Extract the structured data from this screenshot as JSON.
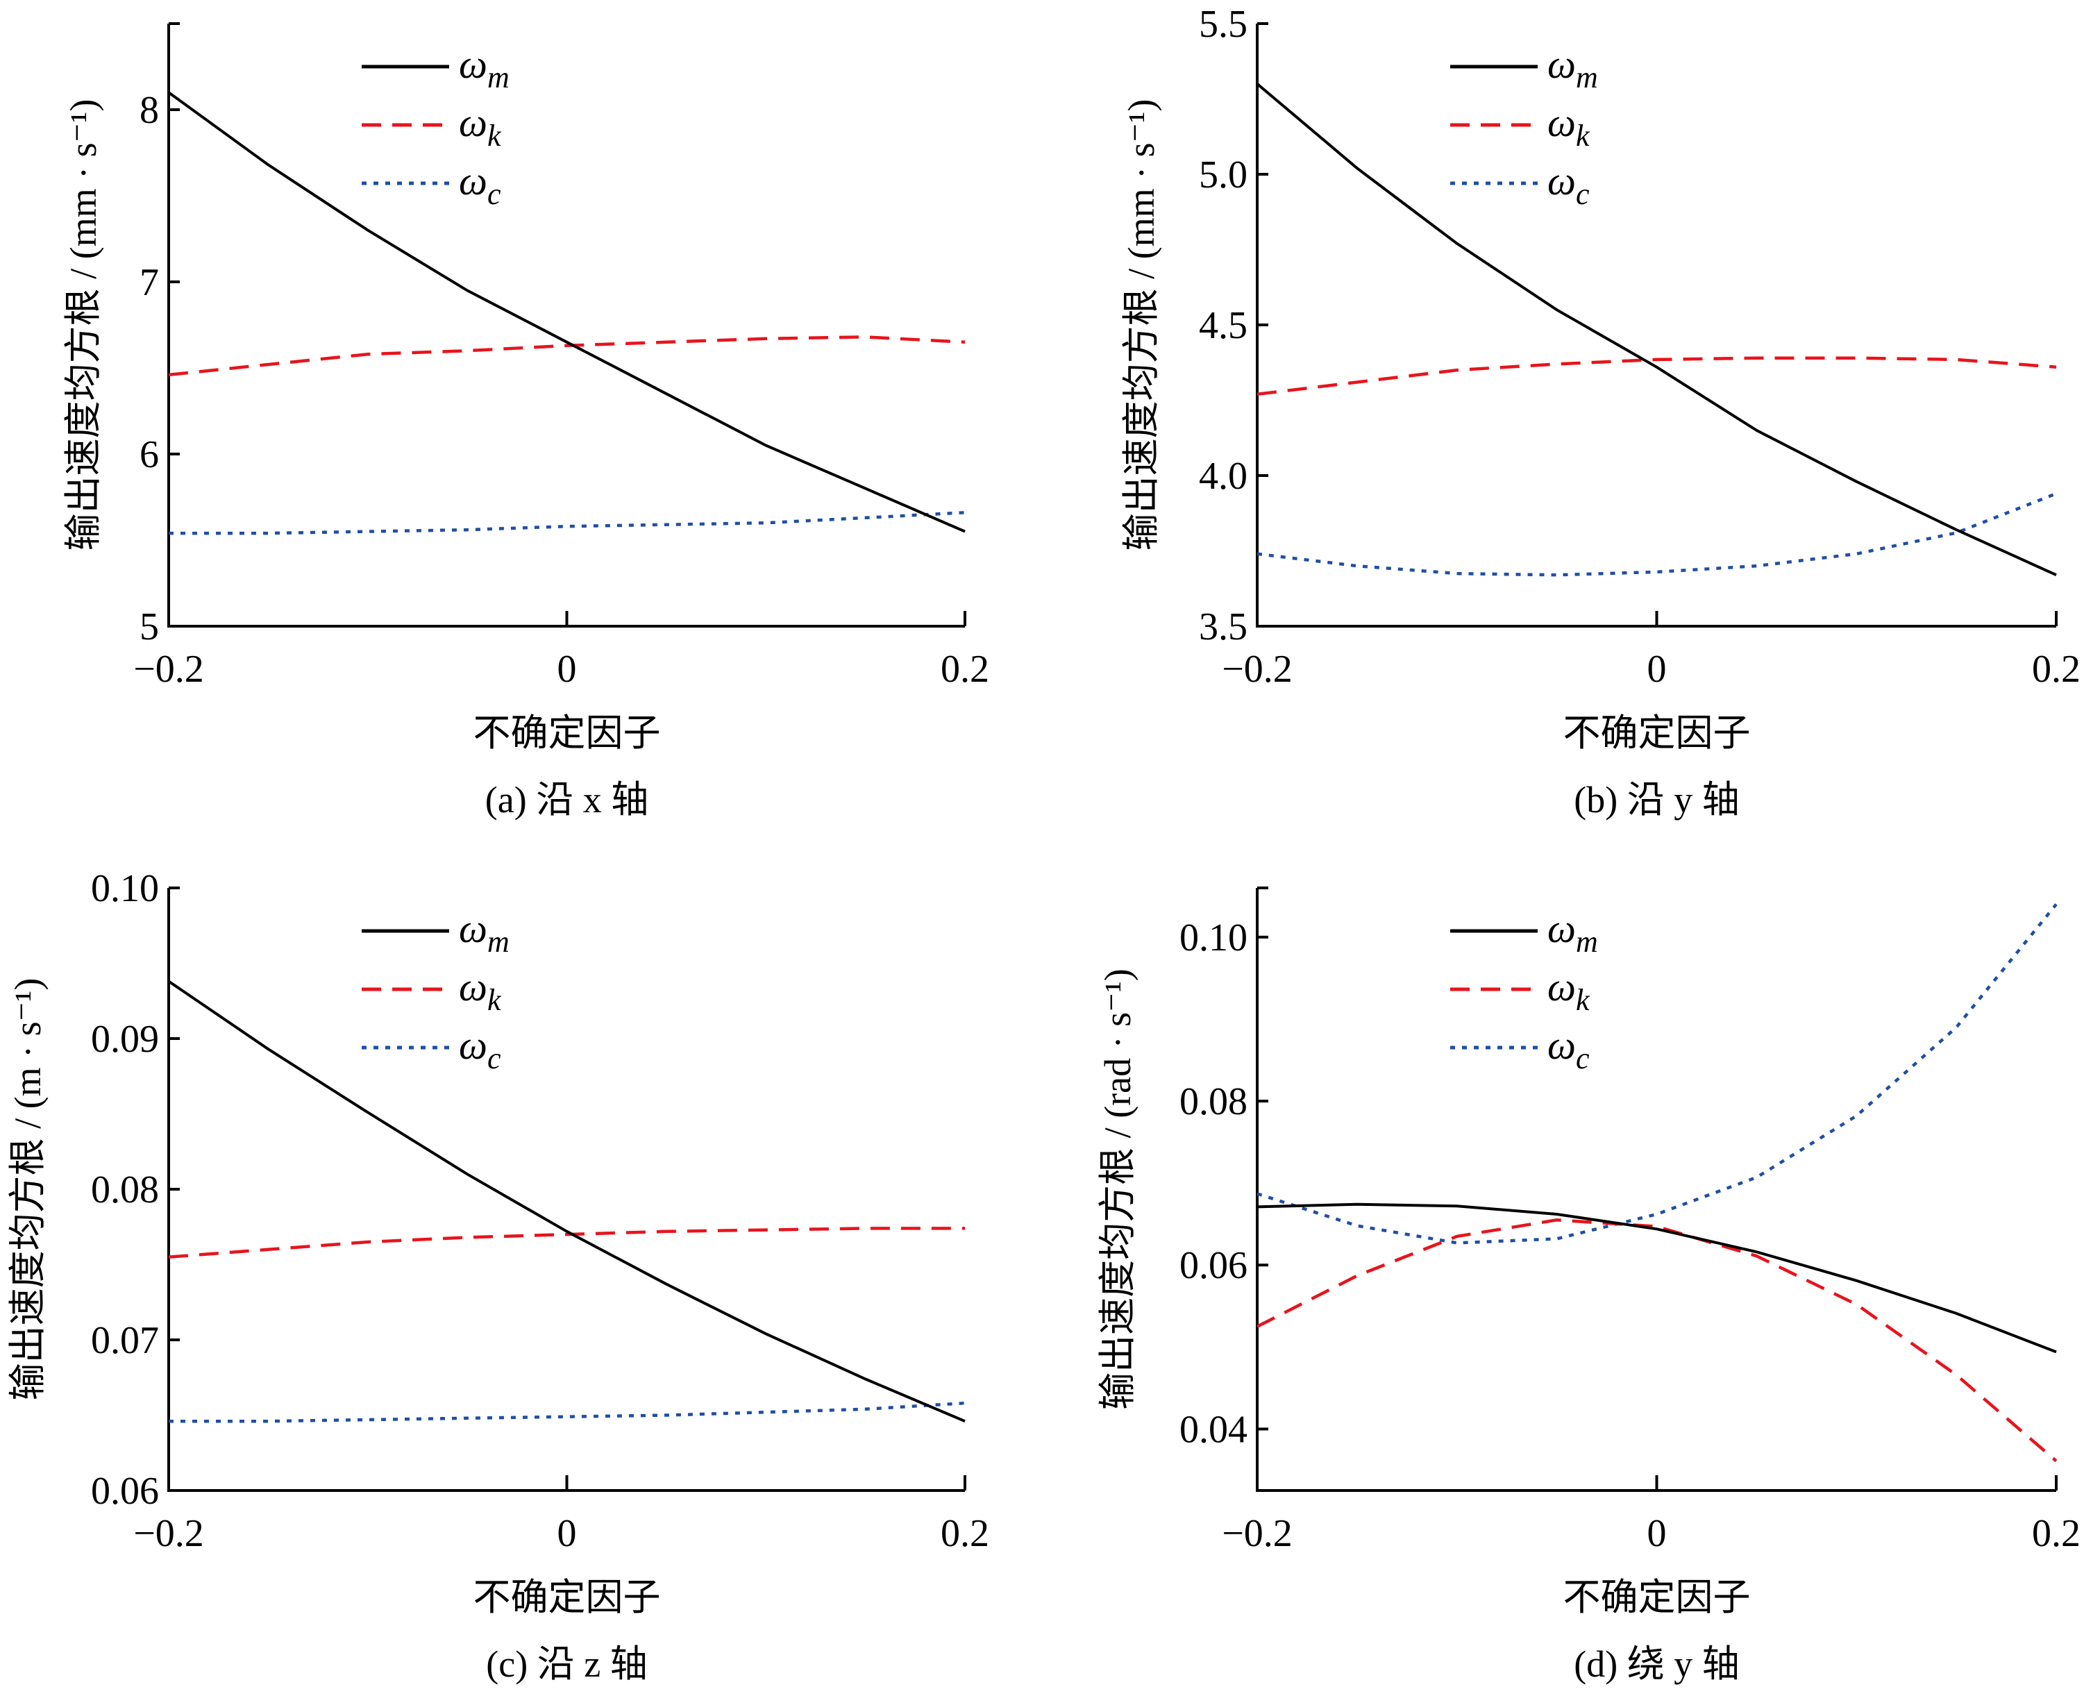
{
  "chart_data": [
    {
      "type": "line",
      "caption": "(a) 沿 x 轴",
      "xlabel": "不确定因子",
      "ylabel": "输出速度均方根 / (mm · s⁻¹)",
      "x": [
        -0.2,
        -0.15,
        -0.1,
        -0.05,
        0,
        0.05,
        0.1,
        0.15,
        0.2
      ],
      "xlim": [
        -0.2,
        0.2
      ],
      "ylim": [
        5,
        8.5
      ],
      "xticks": [
        -0.2,
        0,
        0.2
      ],
      "xtick_labels": [
        "−0.2",
        "0",
        "0.2"
      ],
      "yticks": [
        5,
        6,
        7,
        8
      ],
      "ytick_labels": [
        "5",
        "6",
        "7",
        "8"
      ],
      "series": [
        {
          "name": "ωm",
          "values": [
            8.1,
            7.68,
            7.3,
            6.95,
            6.65,
            6.35,
            6.05,
            5.8,
            5.55
          ]
        },
        {
          "name": "ωk",
          "values": [
            6.46,
            6.52,
            6.58,
            6.6,
            6.63,
            6.65,
            6.67,
            6.68,
            6.65
          ]
        },
        {
          "name": "ωc",
          "values": [
            5.54,
            5.54,
            5.55,
            5.56,
            5.58,
            5.59,
            5.6,
            5.63,
            5.66
          ]
        }
      ]
    },
    {
      "type": "line",
      "caption": "(b) 沿 y 轴",
      "xlabel": "不确定因子",
      "ylabel": "输出速度均方根 / (mm · s⁻¹)",
      "x": [
        -0.2,
        -0.15,
        -0.1,
        -0.05,
        0,
        0.05,
        0.1,
        0.15,
        0.2
      ],
      "xlim": [
        -0.2,
        0.2
      ],
      "ylim": [
        3.5,
        5.5
      ],
      "xticks": [
        -0.2,
        0,
        0.2
      ],
      "xtick_labels": [
        "−0.2",
        "0",
        "0.2"
      ],
      "yticks": [
        3.5,
        4.0,
        4.5,
        5.0,
        5.5
      ],
      "ytick_labels": [
        "3.5",
        "4.0",
        "4.5",
        "5.0",
        "5.5"
      ],
      "series": [
        {
          "name": "ωm",
          "values": [
            5.3,
            5.02,
            4.77,
            4.55,
            4.36,
            4.15,
            3.98,
            3.82,
            3.67
          ]
        },
        {
          "name": "ωk",
          "values": [
            4.27,
            4.31,
            4.35,
            4.37,
            4.385,
            4.39,
            4.39,
            4.385,
            4.36
          ]
        },
        {
          "name": "ωc",
          "values": [
            3.74,
            3.7,
            3.675,
            3.67,
            3.68,
            3.7,
            3.74,
            3.81,
            3.94
          ]
        }
      ]
    },
    {
      "type": "line",
      "caption": "(c) 沿 z 轴",
      "xlabel": "不确定因子",
      "ylabel": "输出速度均方根 / (m · s⁻¹)",
      "x": [
        -0.2,
        -0.15,
        -0.1,
        -0.05,
        0,
        0.05,
        0.1,
        0.15,
        0.2
      ],
      "xlim": [
        -0.2,
        0.2
      ],
      "ylim": [
        0.06,
        0.1
      ],
      "xticks": [
        -0.2,
        0,
        0.2
      ],
      "xtick_labels": [
        "−0.2",
        "0",
        "0.2"
      ],
      "yticks": [
        0.06,
        0.07,
        0.08,
        0.09,
        0.1
      ],
      "ytick_labels": [
        "0.06",
        "0.07",
        "0.08",
        "0.09",
        "0.10"
      ],
      "series": [
        {
          "name": "ωm",
          "values": [
            0.0938,
            0.0893,
            0.0851,
            0.081,
            0.0772,
            0.0737,
            0.0704,
            0.0674,
            0.0646
          ]
        },
        {
          "name": "ωk",
          "values": [
            0.0755,
            0.076,
            0.0765,
            0.0768,
            0.077,
            0.0772,
            0.0773,
            0.0774,
            0.0774
          ]
        },
        {
          "name": "ωc",
          "values": [
            0.0646,
            0.0646,
            0.0647,
            0.0648,
            0.0649,
            0.065,
            0.0652,
            0.0654,
            0.0658
          ]
        }
      ]
    },
    {
      "type": "line",
      "caption": "(d) 绕 y 轴",
      "xlabel": "不确定因子",
      "ylabel": "输出速度均方根 / (rad · s⁻¹)",
      "x": [
        -0.2,
        -0.15,
        -0.1,
        -0.05,
        0,
        0.05,
        0.1,
        0.15,
        0.2
      ],
      "xlim": [
        -0.2,
        0.2
      ],
      "ylim": [
        0.0325,
        0.106
      ],
      "xticks": [
        -0.2,
        0,
        0.2
      ],
      "xtick_labels": [
        "−0.2",
        "0",
        "0.2"
      ],
      "yticks": [
        0.04,
        0.06,
        0.08,
        0.1
      ],
      "ytick_labels": [
        "0.04",
        "0.06",
        "0.08",
        "0.10"
      ],
      "series": [
        {
          "name": "ωm",
          "values": [
            0.0671,
            0.0674,
            0.0672,
            0.0662,
            0.0644,
            0.0616,
            0.0581,
            0.0541,
            0.0494
          ]
        },
        {
          "name": "ωk",
          "values": [
            0.0525,
            0.0587,
            0.0635,
            0.0655,
            0.0647,
            0.0611,
            0.0552,
            0.0466,
            0.0361
          ]
        },
        {
          "name": "ωc",
          "values": [
            0.0687,
            0.0648,
            0.0627,
            0.0632,
            0.0662,
            0.0707,
            0.0782,
            0.089,
            0.104
          ]
        }
      ]
    }
  ],
  "legend": [
    {
      "base": "ω",
      "sub": "m",
      "color": "#000000",
      "style": "solid"
    },
    {
      "base": "ω",
      "sub": "k",
      "color": "#e8141c",
      "style": "dashed"
    },
    {
      "base": "ω",
      "sub": "c",
      "color": "#1f4ea8",
      "style": "dotted"
    }
  ]
}
